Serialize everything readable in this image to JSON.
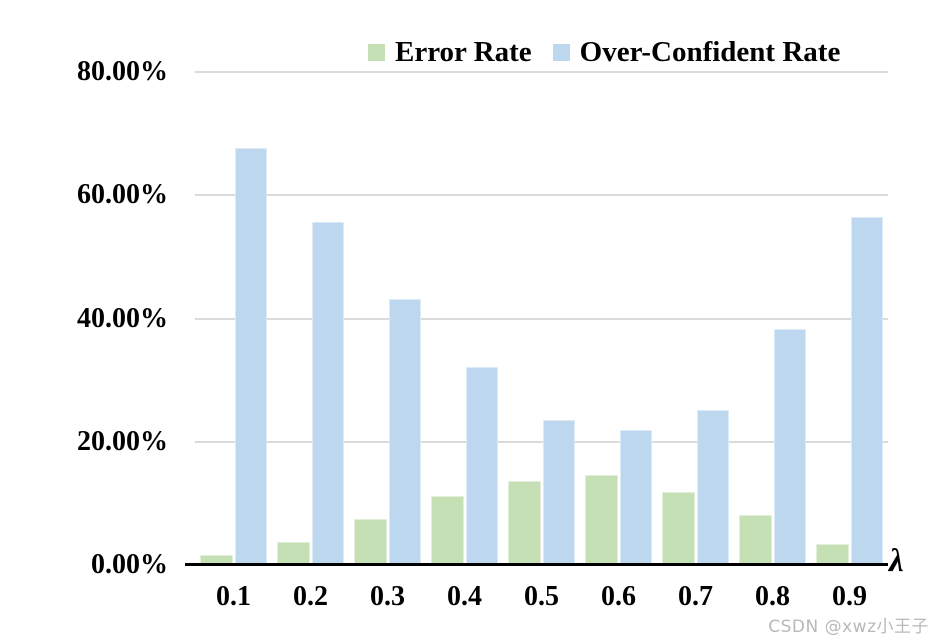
{
  "chart_data": {
    "type": "bar",
    "title": "",
    "categories": [
      "0.1",
      "0.2",
      "0.3",
      "0.4",
      "0.5",
      "0.6",
      "0.7",
      "0.8",
      "0.9"
    ],
    "series": [
      {
        "name": "Error Rate",
        "color": "#C5E0B4",
        "border_color": "#E2EFDA",
        "values": [
          1.6,
          3.7,
          7.4,
          11.2,
          13.6,
          14.6,
          11.9,
          8.1,
          3.4
        ]
      },
      {
        "name": "Over-Confident Rate",
        "color": "#BDD7EE",
        "border_color": "#DDEBF7",
        "values": [
          67.7,
          55.6,
          43.1,
          32.2,
          23.5,
          21.9,
          25.1,
          38.3,
          56.5
        ]
      }
    ],
    "xlabel": "λ",
    "ylabel": "",
    "ylim": [
      0,
      80
    ],
    "yticks": [
      {
        "value": 80,
        "label": "80.00%"
      },
      {
        "value": 60,
        "label": "60.00%"
      },
      {
        "value": 40,
        "label": "40.00%"
      },
      {
        "value": 20,
        "label": "20.00%"
      },
      {
        "value": 0,
        "label": "0.00%"
      }
    ],
    "grid": true,
    "legend_position": "top"
  },
  "watermark": {
    "text": "CSDN @xwz小王子"
  },
  "colors": {
    "background": "#FFFFFF",
    "gridline": "#DBDBDB",
    "axis": "#000000",
    "text": "#000000",
    "watermark": "#B9B9B9"
  }
}
